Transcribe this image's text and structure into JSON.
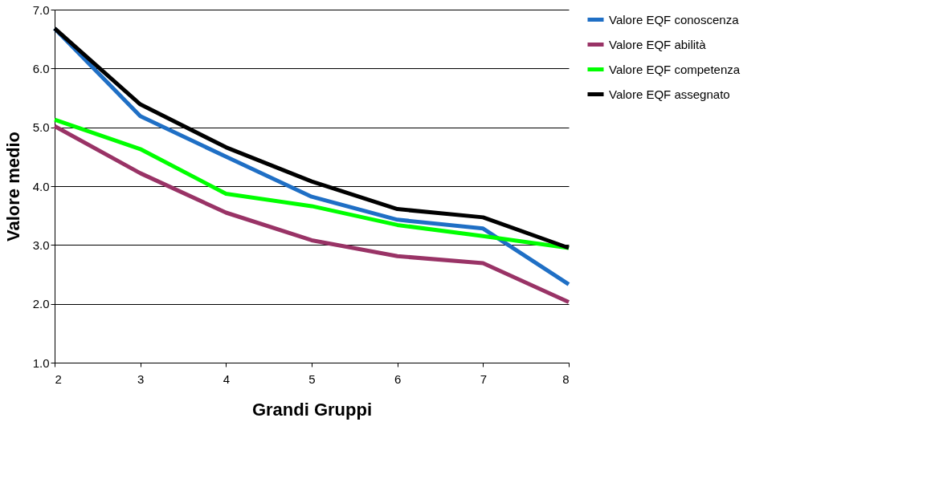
{
  "chart_data": {
    "type": "line",
    "xlabel": "Grandi Gruppi",
    "ylabel": "Valore medio",
    "x": [
      2,
      3,
      4,
      5,
      6,
      7,
      8
    ],
    "xlim": [
      2,
      8
    ],
    "xticks": [
      2,
      3,
      4,
      5,
      6,
      7,
      8
    ],
    "ylim": [
      1,
      7
    ],
    "yticks": [
      {
        "value": 1,
        "label": "1.0"
      },
      {
        "value": 2,
        "label": "2.0"
      },
      {
        "value": 3,
        "label": "3.0"
      },
      {
        "value": 4,
        "label": "4.0"
      },
      {
        "value": 5,
        "label": "5.0"
      },
      {
        "value": 6,
        "label": "6.0"
      },
      {
        "value": 7,
        "label": "7.0"
      }
    ],
    "grid": "y",
    "legend": "right",
    "marker": "none",
    "line_style": "solid",
    "series": [
      {
        "name": "Valore EQF conoscenza",
        "color": "#1f6fc5",
        "values": [
          6.68,
          5.19,
          4.5,
          3.82,
          3.43,
          3.28,
          2.33
        ]
      },
      {
        "name": "Valore EQF abilità",
        "color": "#993366",
        "values": [
          5.02,
          4.22,
          3.55,
          3.08,
          2.81,
          2.69,
          2.03
        ]
      },
      {
        "name": "Valore EQF competenza",
        "color": "#00ff00",
        "values": [
          5.13,
          4.63,
          3.87,
          3.66,
          3.34,
          3.15,
          2.95
        ]
      },
      {
        "name": "Valore EQF assegnato",
        "color": "#000000",
        "values": [
          6.68,
          5.39,
          4.66,
          4.08,
          3.61,
          3.47,
          2.95
        ]
      }
    ]
  }
}
